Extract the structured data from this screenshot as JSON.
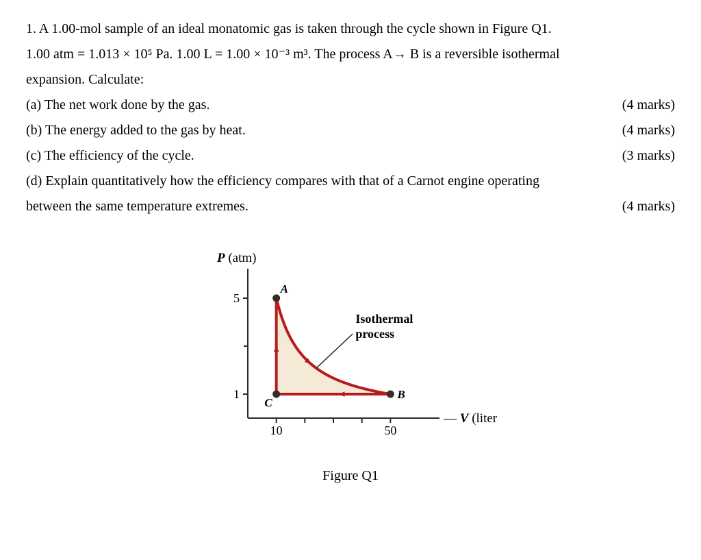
{
  "question": {
    "intro_line1_pre": "1. A 1.00-mol sample of an ideal monatomic gas is taken through the cycle shown in Figure Q1.",
    "intro_line2": "1.00 atm = 1.013 × 10⁵ Pa. 1.00 L = 1.00 × 10⁻³ m³. The process A→ B is a reversible isothermal",
    "intro_line3": "expansion. Calculate:",
    "parts": [
      {
        "label": "(a) The net work done by the gas.",
        "marks": "(4 marks)"
      },
      {
        "label": "(b) The energy added to the gas by heat.",
        "marks": "(4 marks)"
      },
      {
        "label": "(c) The efficiency of the cycle.",
        "marks": "(3 marks)"
      }
    ],
    "part_d_line1": "(d) Explain quantitatively how the efficiency compares with that of a Carnot engine operating",
    "part_d_line2": "between the same temperature extremes.",
    "part_d_marks": "(4 marks)"
  },
  "figure": {
    "caption": "Figure Q1",
    "y_label_P": "P",
    "y_label_unit": " (atm)",
    "x_label_V": "V",
    "x_label_unit": " (liters)",
    "ytick_5": "5",
    "ytick_1": "1",
    "xtick_10": "10",
    "xtick_50": "50",
    "point_A": "A",
    "point_B": "B",
    "point_C": "C",
    "curve_label_l1": "Isothermal",
    "curve_label_l2": "process",
    "style": {
      "curve_color": "#b71c1c",
      "fill_color": "#f5ead8",
      "axis_color": "#2a2a2a",
      "curve_width": 4,
      "axis_width": 2,
      "point_radius": 5.5,
      "point_fill": "#3a2a2a",
      "font_main": "Georgia, 'Times New Roman', serif",
      "label_fontsize": 17,
      "tick_fontsize": 18,
      "axislabel_fontsize": 19
    },
    "geometry_note": "A=(10,5) B=(50,1) C=(10,1). A→B is isotherm PV=50; B→C isobaric; C→A isochoric."
  }
}
